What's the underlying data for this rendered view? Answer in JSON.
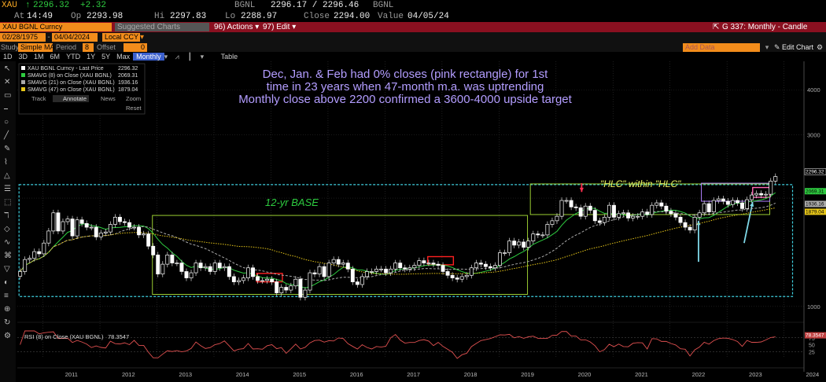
{
  "quote": {
    "ticker": "XAU",
    "last": "2296.32",
    "change": "+2.32",
    "source": "BGNL",
    "bid_ask": "2296.17 / 2296.46",
    "source2": "BGNL",
    "time_label": "At",
    "time": "14:49",
    "open_label": "Op",
    "open": "2293.98",
    "high_label": "Hi",
    "high": "2297.83",
    "low_label": "Lo",
    "low": "2288.97",
    "close_label": "Close",
    "close": "2294.00",
    "value_label": "Value",
    "value": "04/05/24"
  },
  "menu": {
    "security": "XAU BGNL Curncy",
    "suggested": "Suggested Charts",
    "actions": "96) Actions ▾",
    "edit": "97) Edit ▾",
    "chart_title": "G 337: Monthly - Candle"
  },
  "fields": {
    "start_date": "02/28/1975",
    "end_date": "04/04/2024",
    "currency": "Local CCY"
  },
  "study": {
    "study_label": "Study",
    "study_value": "Simple MA",
    "period_label": "Period",
    "period_value": "8",
    "offset_label": "Offset",
    "offset_value": "0",
    "add_data": "Add Data",
    "edit_chart": "Edit Chart"
  },
  "periods": [
    "1D",
    "3D",
    "1M",
    "6M",
    "YTD",
    "1Y",
    "5Y",
    "Max",
    "Monthly"
  ],
  "active_period": "Monthly",
  "table_label": "Table",
  "legend": [
    {
      "name": "XAU BGNL Curncy - Last Price",
      "value": "2296.32",
      "color": "#ffffff"
    },
    {
      "name": "SMAVG (8)  on Close (XAU BGNL)",
      "value": "2069.31",
      "color": "#2ecc40"
    },
    {
      "name": "SMAVG (21)  on Close (XAU BGNL)",
      "value": "1936.16",
      "color": "#aaaaaa"
    },
    {
      "name": "SMAVG (47)  on Close (XAU BGNL)",
      "value": "1879.04",
      "color": "#e6c619"
    }
  ],
  "legend_controls": {
    "track": "Track",
    "annotate": "Annotate",
    "news": "News",
    "zoom": "Zoom",
    "reset": "Reset"
  },
  "annotations": {
    "headline_1": "Dec, Jan. & Feb had 0% closes (pink rectangle) for 1st",
    "headline_2": "time in 23 years when 47-month m.a. was uptrending",
    "headline_3": "Monthly close above 2200 confirmed a 3600-4000 upside target",
    "base": "12-yr BASE",
    "hlc": "\"HLC\" within \"HLC\""
  },
  "rsi": {
    "label": "RSI (8) on Close (XAU BGNL)",
    "value": "78.3547"
  },
  "colors": {
    "candle_up": "#ffffff",
    "candle_down": "#ffffff",
    "sma8": "#2ecc40",
    "sma21": "#aaaaaa",
    "sma47": "#e6c619",
    "base_box": "#3fd0e0",
    "green_box": "#9acd32",
    "red_box": "#ff2020",
    "pink_box": "#ff69b4",
    "purple_box": "#b080ff",
    "arrow": "#7fd8e8",
    "headline": "#b39dff",
    "rsi_line": "#e05050"
  },
  "chart_data": {
    "type": "candlestick",
    "x_tick_labels": [
      "2011",
      "2012",
      "2013",
      "2014",
      "2015",
      "2016",
      "2017",
      "2018",
      "2019",
      "2020",
      "2021",
      "2022",
      "2023",
      "2024"
    ],
    "y_tick_labels": [
      "4000",
      "3000",
      "1000"
    ],
    "y_price_labels": [
      "2296.32",
      "2069.31",
      "1936.16",
      "1879.04"
    ],
    "rsi_tick_labels": [
      "75",
      "50",
      "25"
    ],
    "rsi_ylim": [
      0,
      100
    ],
    "ylog": true,
    "ylim": [
      950,
      4800
    ],
    "x_start_year": 2010.55,
    "x_end_year": 2024.35,
    "monthly_close": [
      1250,
      1350,
      1360,
      1420,
      1400,
      1500,
      1620,
      1820,
      1620,
      1720,
      1750,
      1570,
      1740,
      1700,
      1660,
      1660,
      1560,
      1600,
      1610,
      1690,
      1770,
      1720,
      1710,
      1660,
      1660,
      1580,
      1590,
      1470,
      1390,
      1230,
      1310,
      1390,
      1320,
      1320,
      1250,
      1200,
      1240,
      1320,
      1280,
      1290,
      1250,
      1320,
      1280,
      1290,
      1210,
      1170,
      1180,
      1200,
      1280,
      1210,
      1180,
      1180,
      1190,
      1170,
      1090,
      1130,
      1110,
      1140,
      1190,
      1060,
      1110,
      1240,
      1230,
      1290,
      1210,
      1320,
      1350,
      1310,
      1320,
      1270,
      1170,
      1150,
      1210,
      1250,
      1250,
      1270,
      1270,
      1240,
      1270,
      1320,
      1280,
      1270,
      1280,
      1300,
      1340,
      1320,
      1320,
      1310,
      1300,
      1250,
      1220,
      1200,
      1190,
      1210,
      1220,
      1280,
      1320,
      1310,
      1290,
      1280,
      1300,
      1410,
      1410,
      1520,
      1480,
      1510,
      1460,
      1520,
      1590,
      1580,
      1580,
      1690,
      1730,
      1780,
      1970,
      1970,
      1890,
      1880,
      1780,
      1900,
      1850,
      1730,
      1710,
      1770,
      1910,
      1770,
      1810,
      1820,
      1760,
      1780,
      1780,
      1830,
      1800,
      1910,
      1940,
      1900,
      1840,
      1810,
      1770,
      1710,
      1660,
      1630,
      1770,
      1820,
      1930,
      1830,
      1970,
      1990,
      1960,
      1920,
      1970,
      1940,
      1870,
      1980,
      2040,
      2060,
      2040,
      2050,
      2230,
      2296
    ],
    "series": [
      {
        "name": "XAU BGNL Curncy - Last Price",
        "last": 2296.32
      },
      {
        "name": "SMAVG (8)",
        "last": 2069.31
      },
      {
        "name": "SMAVG (21)",
        "last": 1936.16
      },
      {
        "name": "SMAVG (47)",
        "last": 1879.04
      }
    ],
    "rsi_last": 78.3547
  }
}
